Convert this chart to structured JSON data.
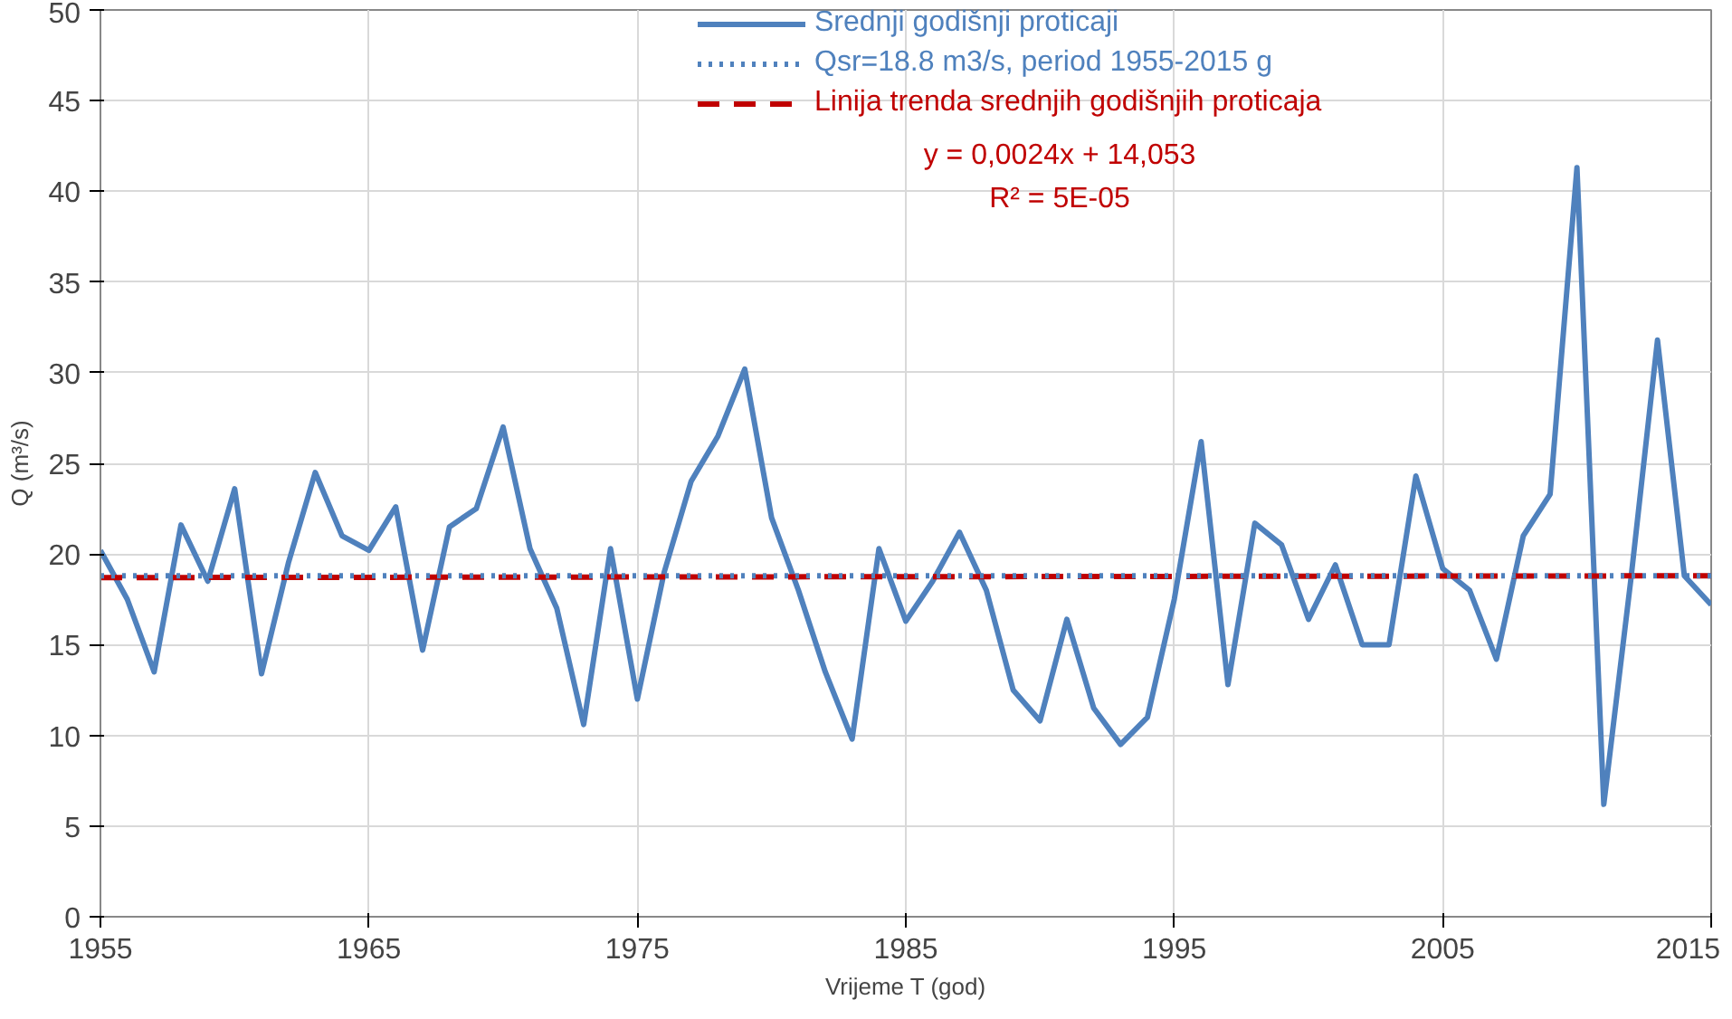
{
  "chart_data": {
    "type": "line",
    "xlabel": "Vrijeme T (god)",
    "ylabel": "Q (m³/s)",
    "x": [
      1955,
      1956,
      1957,
      1958,
      1959,
      1960,
      1961,
      1962,
      1963,
      1964,
      1965,
      1966,
      1967,
      1968,
      1969,
      1970,
      1971,
      1972,
      1973,
      1974,
      1975,
      1976,
      1977,
      1978,
      1979,
      1980,
      1981,
      1982,
      1983,
      1984,
      1985,
      1986,
      1987,
      1988,
      1989,
      1990,
      1991,
      1992,
      1993,
      1994,
      1995,
      1996,
      1997,
      1998,
      1999,
      2000,
      2001,
      2002,
      2003,
      2004,
      2005,
      2006,
      2007,
      2008,
      2009,
      2010,
      2011,
      2012,
      2013,
      2014,
      2015
    ],
    "series": [
      {
        "name": "Srednji godišnji proticaji",
        "color": "#4f81bd",
        "line_style": "solid",
        "values": [
          20.2,
          17.5,
          13.5,
          21.6,
          18.5,
          23.6,
          13.4,
          19.5,
          24.5,
          21,
          20.2,
          22.6,
          14.7,
          21.5,
          22.5,
          27,
          20.3,
          17,
          10.6,
          20.3,
          12,
          19,
          24,
          26.5,
          30.2,
          22,
          18,
          13.5,
          9.8,
          20.3,
          16.3,
          18.5,
          21.2,
          18,
          12.5,
          10.8,
          16.4,
          11.5,
          9.5,
          11,
          17.5,
          26.2,
          12.8,
          21.7,
          20.5,
          16.4,
          19.4,
          15,
          15,
          24.3,
          19.2,
          18,
          14.2,
          21,
          23.3,
          41.3,
          6.2,
          18.5,
          31.8,
          18.8,
          17.2
        ]
      },
      {
        "name": "Linija trenda srednjih godišnjih proticaja",
        "color": "#c00000",
        "line_style": "dashed",
        "x": [
          1955,
          2015
        ],
        "values": [
          18.7,
          18.8
        ]
      }
    ],
    "ref_lines": [
      {
        "axis": "y",
        "value": 18.8,
        "label": "Qsr=18.8 m3/s, period 1955-2015 g",
        "color": "#4f81bd",
        "line_style": "dotted"
      }
    ],
    "annotations": [
      "y = 0,0024x + 14,053",
      "R² = 5E-05"
    ],
    "xlim": [
      1955,
      2015
    ],
    "xticks": [
      1955,
      1965,
      1975,
      1985,
      1995,
      2005,
      2015
    ],
    "ylim": [
      0,
      50
    ],
    "yticks": [
      0,
      5,
      10,
      15,
      20,
      25,
      30,
      35,
      40,
      45,
      50
    ],
    "grid": true,
    "legend": "top",
    "marker": "none"
  }
}
